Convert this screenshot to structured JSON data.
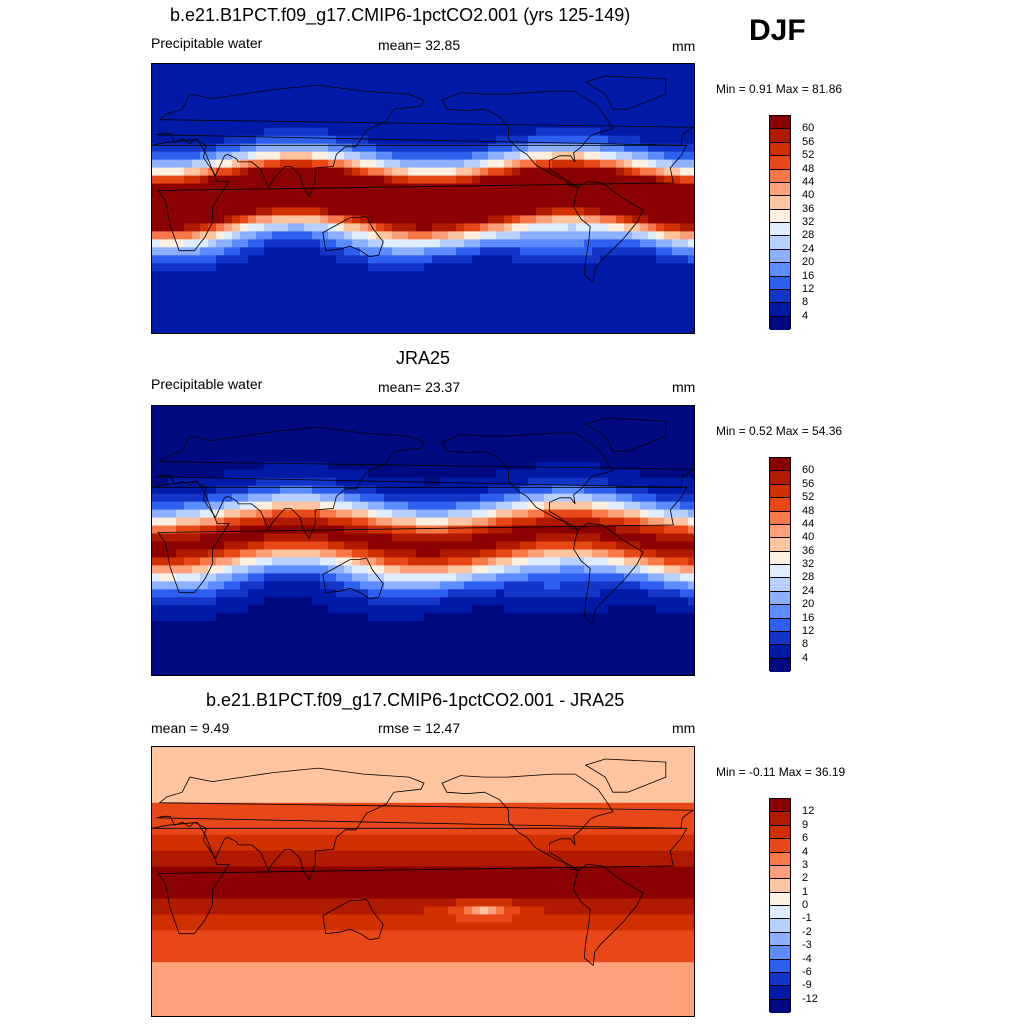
{
  "season": "DJF",
  "panels": [
    {
      "title": "b.e21.B1PCT.f09_g17.CMIP6-1pctCO2.001 (yrs 125-149)",
      "left": "Precipitable water",
      "center": "mean=  32.85",
      "units": "mm",
      "minmax": "Min =   0.91 Max =  81.86",
      "type": "abs",
      "scale": 1.35
    },
    {
      "title": "JRA25",
      "left": "Precipitable water",
      "center": "mean=  23.37",
      "units": "mm",
      "minmax": "Min =   0.52 Max =  54.36",
      "type": "abs",
      "scale": 0.95
    },
    {
      "title": "b.e21.B1PCT.f09_g17.CMIP6-1pctCO2.001 - JRA25",
      "left": "mean =   9.49",
      "center": "rmse =  12.47",
      "units": "mm",
      "minmax": "Min =  -0.11 Max =  36.19",
      "type": "diff",
      "scale": 1.0
    }
  ],
  "colorbars": {
    "abs": {
      "labels": [
        "60",
        "56",
        "52",
        "48",
        "44",
        "40",
        "36",
        "32",
        "28",
        "24",
        "20",
        "16",
        "12",
        "8",
        "4"
      ],
      "colors": [
        "#8b0000",
        "#b01a00",
        "#d03000",
        "#e84818",
        "#f87848",
        "#ffa07a",
        "#ffc4a0",
        "#fff0e0",
        "#e0ecff",
        "#b8d0ff",
        "#8cb0ff",
        "#5c8cff",
        "#2e60f0",
        "#1436c8",
        "#001aa8",
        "#000a80"
      ]
    },
    "diff": {
      "labels": [
        "12",
        "9",
        "6",
        "4",
        "3",
        "2",
        "1",
        "0",
        "-1",
        "-2",
        "-3",
        "-4",
        "-6",
        "-9",
        "-12"
      ],
      "colors": [
        "#8b0000",
        "#b01a00",
        "#d03000",
        "#e84818",
        "#f87848",
        "#ffa07a",
        "#ffc4a0",
        "#fff0e0",
        "#e0ecff",
        "#b8d0ff",
        "#8cb0ff",
        "#5c8cff",
        "#2e60f0",
        "#1436c8",
        "#001aa8",
        "#000a80"
      ]
    }
  }
}
